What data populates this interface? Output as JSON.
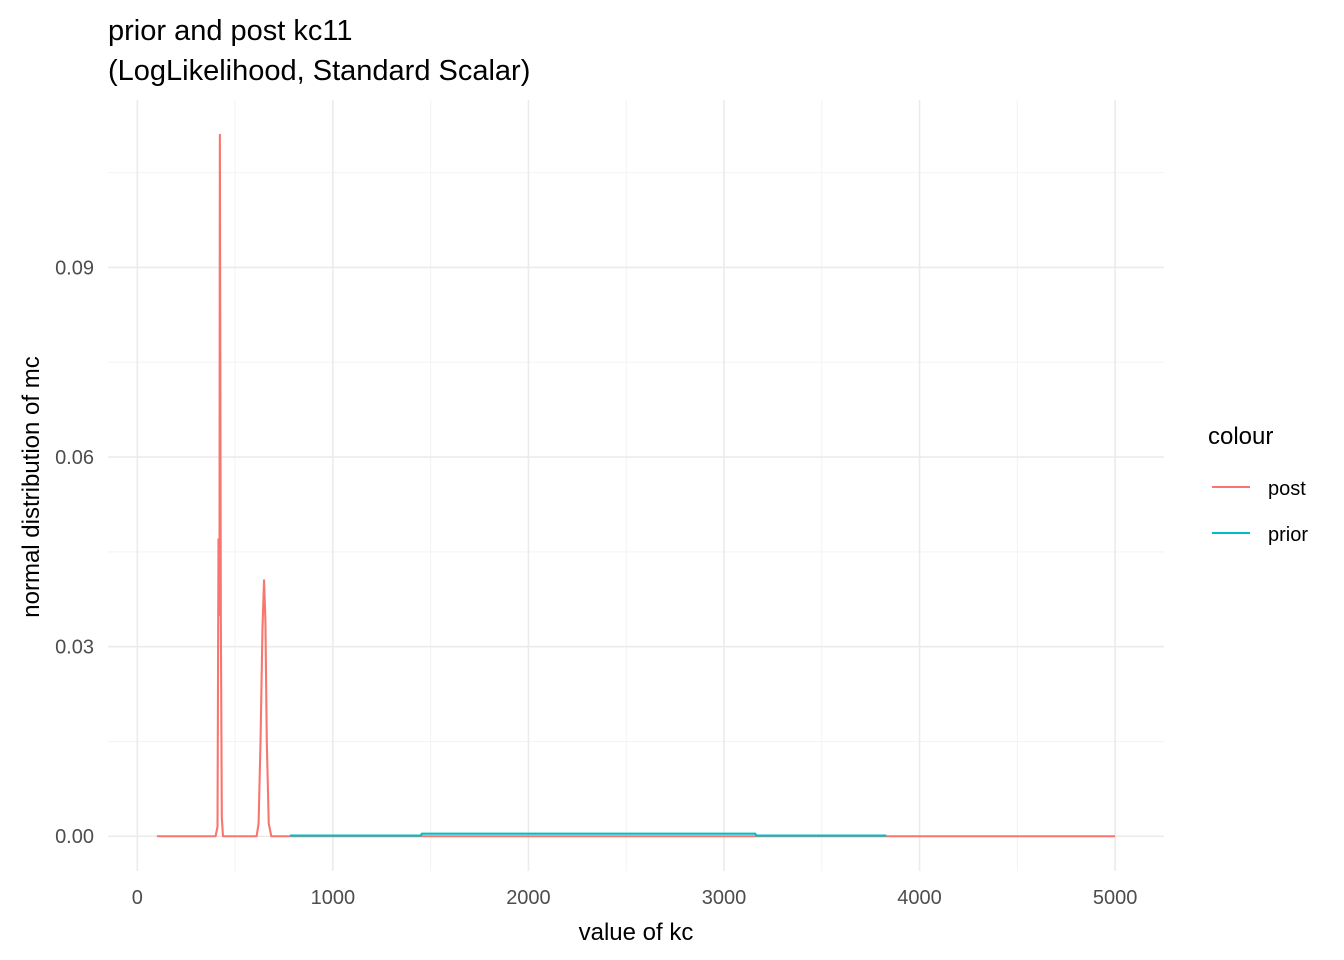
{
  "chart_data": {
    "type": "line",
    "title": "prior and post kc11",
    "subtitle": "(LogLikelihood, Standard Scalar)",
    "xlabel": "value of kc",
    "ylabel": "normal distribution of mc",
    "xlim": [
      -150,
      5250
    ],
    "ylim": [
      -0.0055,
      0.1165
    ],
    "x_ticks": [
      0,
      1000,
      2000,
      3000,
      4000,
      5000
    ],
    "x_tick_labels": [
      "0",
      "1000",
      "2000",
      "3000",
      "4000",
      "5000"
    ],
    "y_ticks": [
      0.0,
      0.03,
      0.06,
      0.09
    ],
    "y_tick_labels": [
      "0.00",
      "0.03",
      "0.06",
      "0.09"
    ],
    "grid": true,
    "legend": {
      "title": "colour",
      "placement": "right"
    },
    "series": [
      {
        "name": "post",
        "color": "#F8766D",
        "points": [
          [
            100,
            0
          ],
          [
            400,
            0
          ],
          [
            410,
            0.0015
          ],
          [
            415,
            0.047
          ],
          [
            420,
            0.035
          ],
          [
            422,
            0.111
          ],
          [
            427,
            0.034
          ],
          [
            432,
            0.003
          ],
          [
            438,
            0
          ],
          [
            610,
            0
          ],
          [
            620,
            0.002
          ],
          [
            630,
            0.015
          ],
          [
            640,
            0.033
          ],
          [
            648,
            0.0405
          ],
          [
            655,
            0.034
          ],
          [
            662,
            0.015
          ],
          [
            672,
            0.002
          ],
          [
            685,
            0
          ],
          [
            5000,
            0
          ]
        ]
      },
      {
        "name": "prior",
        "color": "#00BFC4",
        "points": [
          [
            780,
            0.0001
          ],
          [
            1450,
            0.0001
          ],
          [
            1455,
            0.0004
          ],
          [
            3160,
            0.0004
          ],
          [
            3165,
            0.0001
          ],
          [
            3830,
            0.0001
          ]
        ]
      }
    ]
  }
}
